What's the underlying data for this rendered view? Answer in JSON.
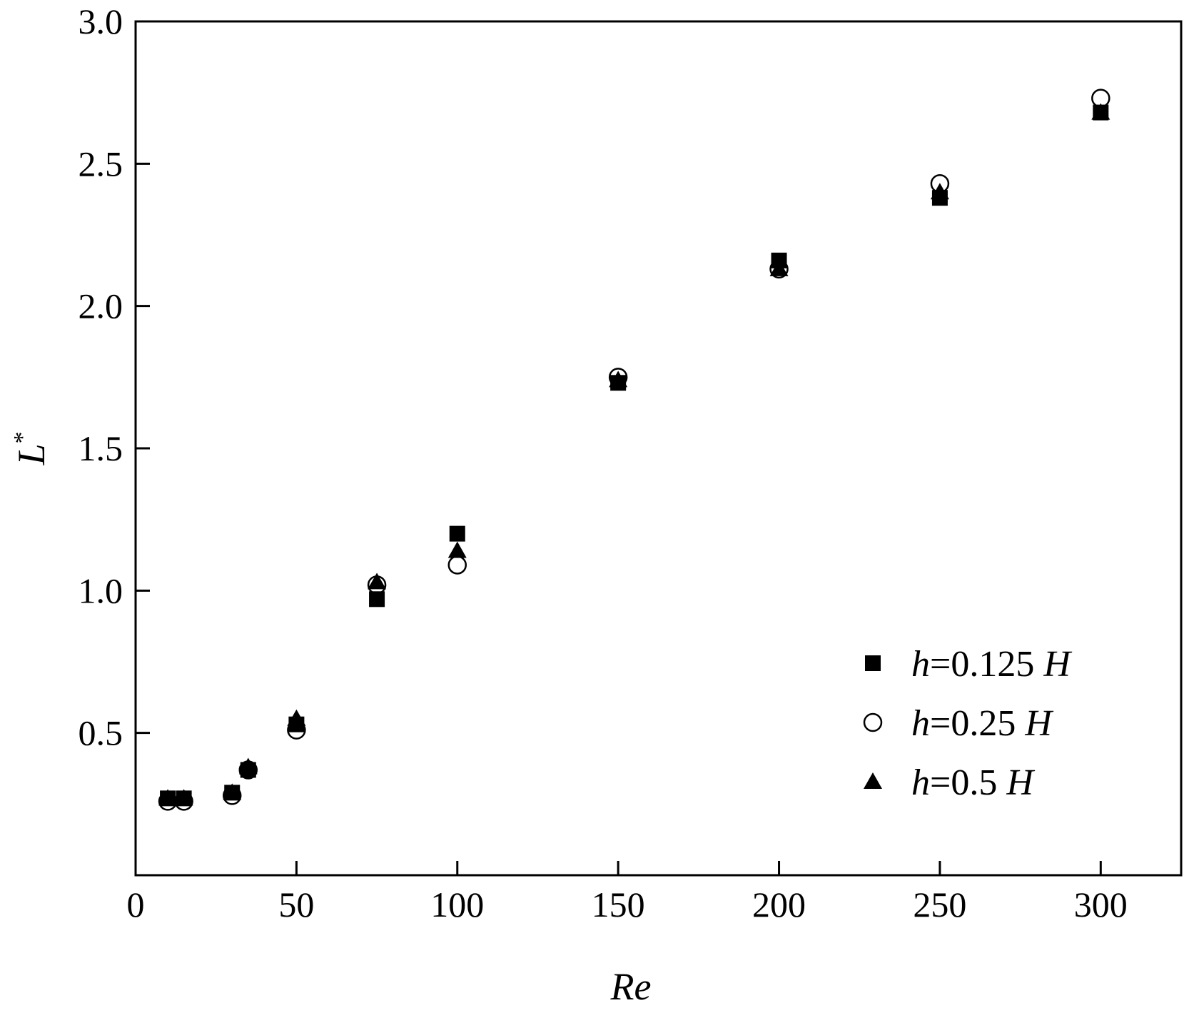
{
  "chart_data": {
    "type": "scatter",
    "xlabel": "Re",
    "ylabel": {
      "base": "L",
      "sup": "*"
    },
    "xlim": [
      0,
      325
    ],
    "ylim": [
      0,
      3.0
    ],
    "xticks": [
      0,
      50,
      100,
      150,
      200,
      250,
      300
    ],
    "xtick_labels": [
      "0",
      "50",
      "100",
      "150",
      "200",
      "250",
      "300"
    ],
    "yticks": [
      0.5,
      1.0,
      1.5,
      2.0,
      2.5,
      3.0
    ],
    "ytick_labels": [
      "0.5",
      "1.0",
      "1.5",
      "2.0",
      "2.5",
      "3.0"
    ],
    "grid": false,
    "legend_position": "bottom-right",
    "series": [
      {
        "name": "h=0.125 H",
        "legend": {
          "var": "h",
          "rest": "=0.125 ",
          "unit": "H"
        },
        "marker": "square-filled",
        "x": [
          10,
          15,
          30,
          35,
          50,
          75,
          100,
          150,
          200,
          250,
          300
        ],
        "y": [
          0.27,
          0.27,
          0.29,
          0.37,
          0.53,
          0.97,
          1.2,
          1.73,
          2.16,
          2.38,
          2.68
        ]
      },
      {
        "name": "h=0.25 H",
        "legend": {
          "var": "h",
          "rest": "=0.25 ",
          "unit": "H"
        },
        "marker": "circle-open",
        "x": [
          10,
          15,
          30,
          35,
          50,
          75,
          100,
          150,
          200,
          250,
          300
        ],
        "y": [
          0.26,
          0.26,
          0.28,
          0.37,
          0.51,
          1.02,
          1.09,
          1.75,
          2.13,
          2.43,
          2.73
        ]
      },
      {
        "name": "h=0.5 H",
        "legend": {
          "var": "h",
          "rest": "=0.5 ",
          "unit": "H"
        },
        "marker": "triangle-filled",
        "x": [
          10,
          15,
          30,
          35,
          50,
          75,
          100,
          150,
          200,
          250,
          300
        ],
        "y": [
          0.27,
          0.27,
          0.29,
          0.38,
          0.55,
          1.03,
          1.14,
          1.74,
          2.13,
          2.4,
          2.68
        ]
      }
    ]
  }
}
